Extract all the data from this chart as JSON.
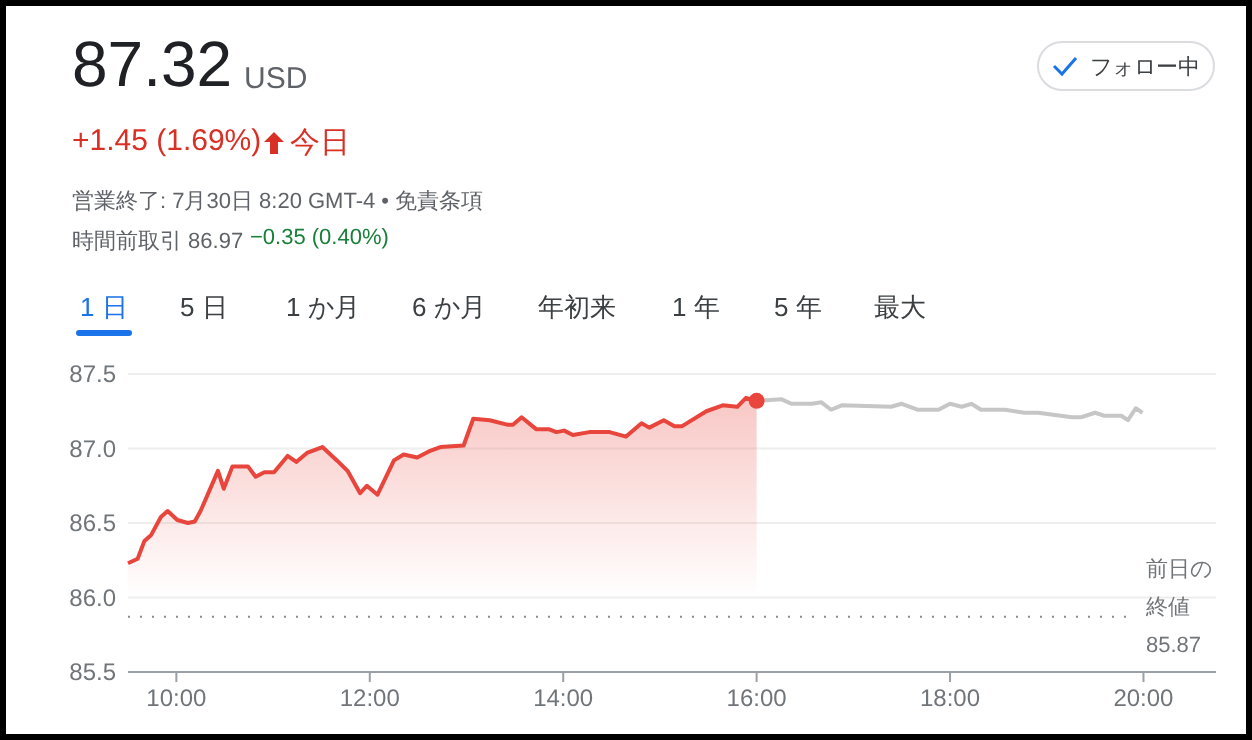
{
  "chart_data": {
    "type": "line",
    "title": "87.32",
    "subtitle": "USD",
    "annotations": [
      "+1.45 (1.69%)",
      "今日",
      "営業終了: 7月30日 8:20 GMT-4 • 免責条項",
      "時間前取引 86.97",
      "−0.35 (0.40%)",
      "フォロー中",
      "1 日",
      "5 日",
      "1 か月",
      "6 か月",
      "年初来",
      "1 年",
      "5 年",
      "最大"
    ],
    "series": [
      {
        "type": "area",
        "color": "#e8453c",
        "x": [
          9.5,
          9.6,
          9.67,
          9.74,
          9.84,
          9.91,
          10.01,
          10.12,
          10.19,
          10.25,
          10.43,
          10.49,
          10.58,
          10.74,
          10.82,
          10.91,
          11.01,
          11.15,
          11.24,
          11.35,
          11.51,
          11.66,
          11.77,
          11.9,
          11.97,
          12.08,
          12.25,
          12.35,
          12.49,
          12.61,
          12.73,
          12.97,
          13.07,
          13.24,
          13.42,
          13.48,
          13.57,
          13.72,
          13.85,
          13.93,
          14.01,
          14.1,
          14.27,
          14.48,
          14.65,
          14.81,
          14.89,
          15.04,
          15.15,
          15.23,
          15.48,
          15.65,
          15.8,
          15.89,
          16.0
        ],
        "values": [
          86.23,
          86.26,
          86.38,
          86.42,
          86.54,
          86.58,
          86.52,
          86.5,
          86.51,
          86.58,
          86.85,
          86.73,
          86.88,
          86.88,
          86.81,
          86.84,
          86.84,
          86.95,
          86.91,
          86.97,
          87.01,
          86.92,
          86.85,
          86.7,
          86.75,
          86.69,
          86.92,
          86.96,
          86.94,
          86.98,
          87.01,
          87.02,
          87.2,
          87.19,
          87.16,
          87.16,
          87.21,
          87.13,
          87.13,
          87.11,
          87.12,
          87.09,
          87.11,
          87.11,
          87.08,
          87.17,
          87.14,
          87.19,
          87.15,
          87.15,
          87.25,
          87.29,
          87.28,
          87.34,
          87.32
        ]
      },
      {
        "color": "#c6c6c6",
        "x": [
          16.0,
          16.26,
          16.36,
          16.57,
          16.67,
          16.77,
          16.88,
          17.39,
          17.5,
          17.67,
          17.88,
          18.0,
          18.12,
          18.22,
          18.32,
          18.57,
          18.77,
          18.91,
          19.26,
          19.36,
          19.5,
          19.59,
          19.77,
          19.84,
          19.92,
          19.99
        ],
        "values": [
          87.32,
          87.33,
          87.3,
          87.3,
          87.31,
          87.26,
          87.29,
          87.28,
          87.3,
          87.26,
          87.26,
          87.3,
          87.28,
          87.3,
          87.26,
          87.26,
          87.24,
          87.24,
          87.21,
          87.21,
          87.24,
          87.22,
          87.22,
          87.19,
          87.27,
          87.24
        ]
      },
      {
        "type": "scatter",
        "color": "#e8453c",
        "x": [
          16.0
        ],
        "values": [
          87.32
        ]
      }
    ],
    "xlim": [
      9.5,
      20.75
    ],
    "ylim": [
      85.5,
      87.5
    ],
    "xticks": [
      {
        "value": 10,
        "label": "10:00"
      },
      {
        "value": 12,
        "label": "12:00"
      },
      {
        "value": 14,
        "label": "14:00"
      },
      {
        "value": 16,
        "label": "16:00"
      },
      {
        "value": 18,
        "label": "18:00"
      },
      {
        "value": 20,
        "label": "20:00"
      }
    ],
    "yticks": [
      {
        "value": 85.5,
        "label": "85.5"
      },
      {
        "value": 86,
        "label": "86.0"
      },
      {
        "value": 86.5,
        "label": "86.5"
      },
      {
        "value": 87,
        "label": "87.0"
      },
      {
        "value": 87.5,
        "label": "87.5"
      }
    ],
    "ref_lines": [
      {
        "axis": "y",
        "value": 85.87,
        "label": "前日の終値 85.87",
        "line_style": "dotted",
        "color": "#888888"
      }
    ],
    "grid": "y"
  }
}
